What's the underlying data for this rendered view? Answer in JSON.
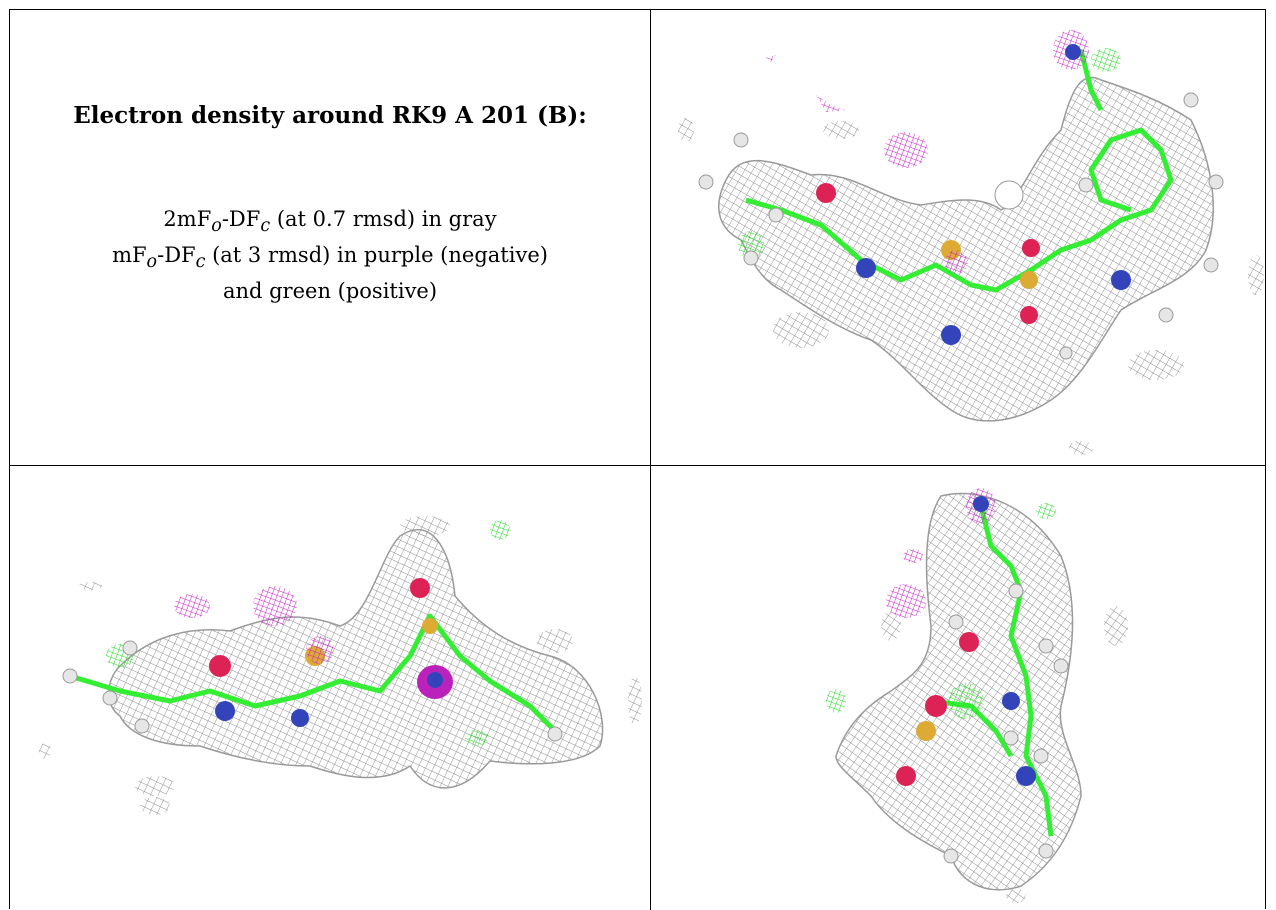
{
  "panel": {
    "title": "Electron density around RK9 A 201 (B):",
    "legend": {
      "line1_prefix": "2mF",
      "line1_sub1": "o",
      "line1_mid": "-DF",
      "line1_sub2": "c",
      "line1_suffix": " (at 0.7 rmsd) in gray",
      "line2_prefix": "mF",
      "line2_sub1": "o",
      "line2_mid": "-DF",
      "line2_sub2": "c",
      "line2_suffix": " (at 3 rmsd) in purple (negative)",
      "line3": "and green (positive)"
    }
  },
  "colors": {
    "density_2fofc": "#8c8c8c",
    "fofc_negative": "#cc22cc",
    "fofc_positive": "#22dd22",
    "carbon": "#33ee33",
    "oxygen": "#dd2255",
    "nitrogen": "#3344bb",
    "sulfur": "#ddaa33",
    "hydrogen": "#e6e6e6"
  },
  "images": {
    "view1": "density-view-top-right",
    "view2": "density-view-bottom-left",
    "view3": "density-view-bottom-right"
  }
}
